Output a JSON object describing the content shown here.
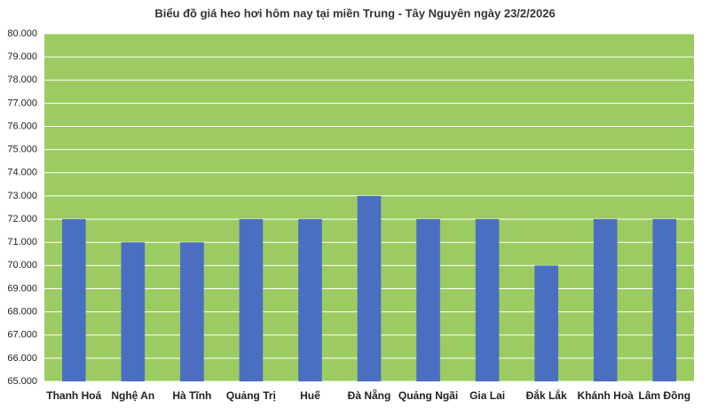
{
  "chart_data": {
    "type": "bar",
    "title": "Biểu đồ giá heo hơi hôm nay tại miền Trung - Tây Nguyên ngày 23/2/2026",
    "categories": [
      "Thanh Hoá",
      "Nghệ An",
      "Hà Tĩnh",
      "Quảng Trị",
      "Huế",
      "Đà Nẵng",
      "Quảng Ngãi",
      "Gia Lai",
      "Đắk Lắk",
      "Khánh Hoà",
      "Lâm Đồng"
    ],
    "values": [
      72000,
      71000,
      71000,
      72000,
      72000,
      73000,
      72000,
      72000,
      70000,
      72000,
      72000
    ],
    "color": "#4a6fc1",
    "background": "#9ccc61",
    "ylim": [
      65000,
      80000
    ],
    "yticks": [
      {
        "value": 65000,
        "label": "65.000"
      },
      {
        "value": 66000,
        "label": "66.000"
      },
      {
        "value": 67000,
        "label": "67.000"
      },
      {
        "value": 68000,
        "label": "68.000"
      },
      {
        "value": 69000,
        "label": "69.000"
      },
      {
        "value": 70000,
        "label": "70.000"
      },
      {
        "value": 71000,
        "label": "71.000"
      },
      {
        "value": 72000,
        "label": "72.000"
      },
      {
        "value": 73000,
        "label": "73.000"
      },
      {
        "value": 74000,
        "label": "74.000"
      },
      {
        "value": 75000,
        "label": "75.000"
      },
      {
        "value": 76000,
        "label": "76.000"
      },
      {
        "value": 77000,
        "label": "77.000"
      },
      {
        "value": 78000,
        "label": "78.000"
      },
      {
        "value": 79000,
        "label": "79.000"
      },
      {
        "value": 80000,
        "label": "80.000"
      }
    ],
    "grid": true
  }
}
